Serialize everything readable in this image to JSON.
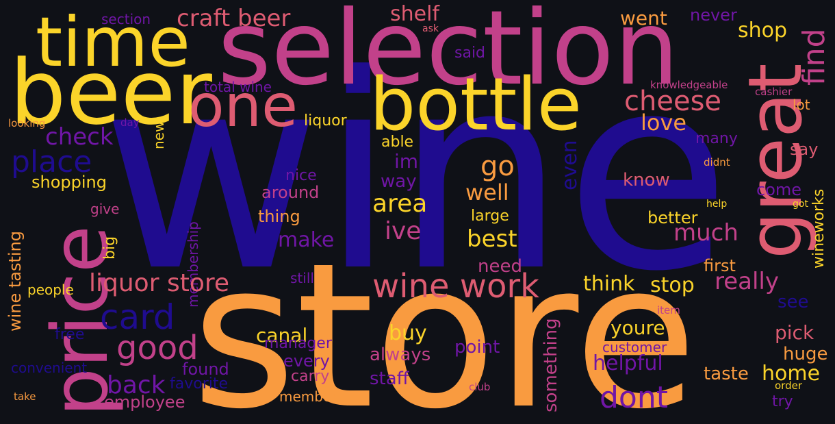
{
  "colors": {
    "background": "#0f1117",
    "indigo": "#1f0c8f",
    "purple": "#7016a6",
    "magenta": "#c2418a",
    "pink": "#de5c72",
    "orange": "#f99b40",
    "yellow": "#fbd42a"
  },
  "words": {
    "wine": "wine",
    "store": "store",
    "selection": "selection",
    "beer": "beer",
    "time": "time",
    "one": "one",
    "bottle": "bottle",
    "great": "great",
    "price": "price",
    "craft_beer": "craft beer",
    "shelf": "shelf",
    "went": "went",
    "never": "never",
    "shop": "shop",
    "find": "find",
    "section": "section",
    "ask": "ask",
    "said": "said",
    "total_wine": "total wine",
    "knowledgeable": "knowledgeable",
    "cashier": "cashier",
    "lot": "lot",
    "cheese": "cheese",
    "love": "love",
    "looking": "looking",
    "day": "day",
    "new": "new",
    "check": "check",
    "liquor": "liquor",
    "able": "able",
    "many": "many",
    "place": "place",
    "im": "im",
    "go": "go",
    "even": "even",
    "say": "say",
    "didnt": "didnt",
    "shopping": "shopping",
    "nice": "nice",
    "way": "way",
    "know": "know",
    "around": "around",
    "area": "area",
    "well": "well",
    "come": "come",
    "give": "give",
    "help": "help",
    "got": "got",
    "wine_tasting": "wine tasting",
    "big": "big",
    "membership": "membership",
    "thing": "thing",
    "large": "large",
    "better": "better",
    "wineworks": "wineworks",
    "make": "make",
    "ive": "ive",
    "best": "best",
    "much": "much",
    "need": "need",
    "first": "first",
    "still": "still",
    "people": "people",
    "liquor_store": "liquor store",
    "wine_work": "wine work",
    "think": "think",
    "stop": "stop",
    "really": "really",
    "card": "card",
    "item": "item",
    "see": "see",
    "free": "free",
    "youre": "youre",
    "good": "good",
    "canal": "canal",
    "buy": "buy",
    "pick": "pick",
    "manager": "manager",
    "point": "point",
    "customer": "customer",
    "huge": "huge",
    "always": "always",
    "every": "every",
    "helpful": "helpful",
    "convenient": "convenient",
    "found": "found",
    "back": "back",
    "carry": "carry",
    "staff": "staff",
    "taste": "taste",
    "home": "home",
    "favorite": "favorite",
    "something": "something",
    "take": "take",
    "employee": "employee",
    "member": "member",
    "club": "club",
    "dont": "dont",
    "order": "order",
    "try": "try"
  }
}
